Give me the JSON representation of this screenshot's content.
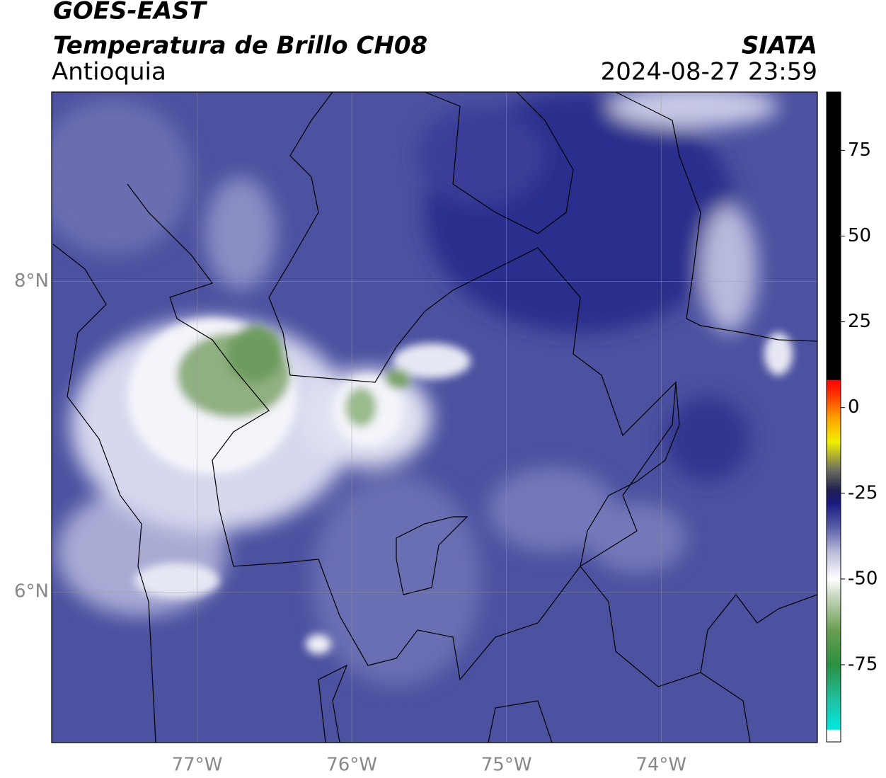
{
  "header": {
    "title": "GOES-EAST",
    "subtitle": "Temperatura de Brillo CH08",
    "region": "Antioquia",
    "source": "SIATA",
    "timestamp": "2024-08-27 23:59"
  },
  "map": {
    "xlim": [
      -77.94,
      -72.99
    ],
    "ylim": [
      5.03,
      9.22
    ],
    "xticks": [
      {
        "value": -77,
        "label": "77°W"
      },
      {
        "value": -76,
        "label": "76°W"
      },
      {
        "value": -75,
        "label": "75°W"
      },
      {
        "value": -74,
        "label": "74°W"
      }
    ],
    "yticks": [
      {
        "value": 6,
        "label": "6°N"
      },
      {
        "value": 8,
        "label": "8°N"
      }
    ],
    "grid": true
  },
  "colorbar": {
    "lim": [
      -97.5,
      92
    ],
    "ticks": [
      75,
      50,
      25,
      0,
      -25,
      -50,
      -75
    ],
    "stops": [
      {
        "value": -97.5,
        "color": "#ffffff"
      },
      {
        "value": -94,
        "color": "#ffffff"
      },
      {
        "value": -93.9,
        "color": "#00e8e0"
      },
      {
        "value": -85,
        "color": "#20c0a0"
      },
      {
        "value": -75,
        "color": "#2a9040"
      },
      {
        "value": -65,
        "color": "#6a9e50"
      },
      {
        "value": -55,
        "color": "#c8d8c0"
      },
      {
        "value": -50,
        "color": "#ffffff"
      },
      {
        "value": -42,
        "color": "#b8bad8"
      },
      {
        "value": -35,
        "color": "#5a5ea8"
      },
      {
        "value": -28,
        "color": "#1a1a80"
      },
      {
        "value": -24,
        "color": "#202050"
      },
      {
        "value": -18,
        "color": "#707060"
      },
      {
        "value": -10,
        "color": "#f0f000"
      },
      {
        "value": -3,
        "color": "#ffa000"
      },
      {
        "value": 4,
        "color": "#ff3000"
      },
      {
        "value": 8,
        "color": "#ff0000"
      },
      {
        "value": 8.1,
        "color": "#000000"
      },
      {
        "value": 92,
        "color": "#000000"
      }
    ]
  }
}
